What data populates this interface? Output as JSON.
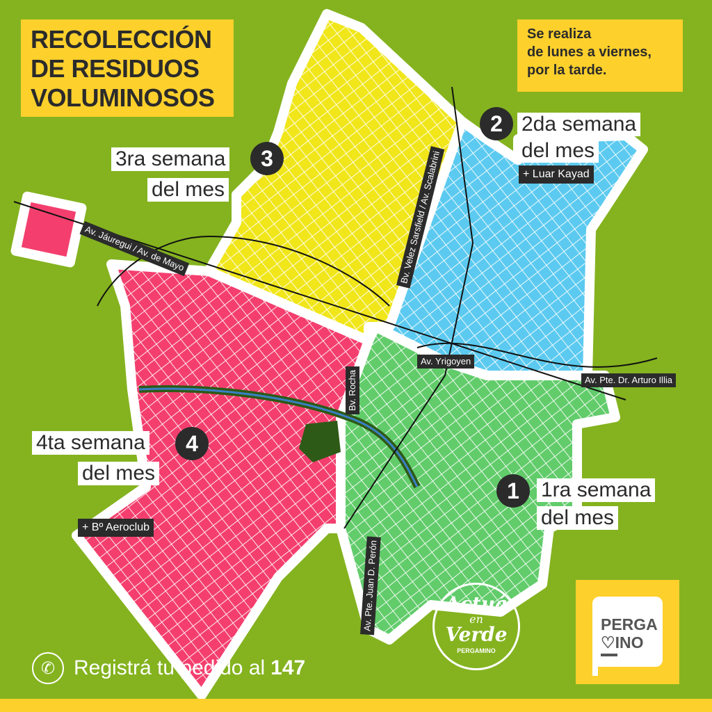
{
  "title": {
    "lines": [
      "RECOLECCIÓN",
      "DE RESIDUOS",
      "VOLUMINOSOS"
    ]
  },
  "schedule": {
    "lines": [
      "Se realiza",
      "de lunes a viernes,",
      "por la tarde."
    ]
  },
  "zones": [
    {
      "number": "1",
      "line1": "1ra semana",
      "line2": "del mes",
      "color": "#62cc6b"
    },
    {
      "number": "2",
      "line1": "2da semana",
      "line2": "del mes",
      "extra": "+ Luar Kayad",
      "color": "#5ccaf0"
    },
    {
      "number": "3",
      "line1": "3ra semana",
      "line2": "del mes",
      "color": "#f0e61a"
    },
    {
      "number": "4",
      "line1": "4ta semana",
      "line2": "del mes",
      "extra": "+ Bº Aeroclub",
      "color": "#f43f6e"
    }
  ],
  "streets": [
    "Av. Jáuregui / Av. de Mayo",
    "Bv. Velez Sarsfield / Av. Scalabrini",
    "Av. Yrigoyen",
    "Av. Pte. Dr. Arturo Illia",
    "Bv. Rocha",
    "Av. Pte. Juan D. Perón"
  ],
  "contact": {
    "text": "Registrá tu pedido al",
    "number": "147",
    "icon": "phone-icon"
  },
  "logos": {
    "actua": [
      "Actuá",
      "en",
      "Verde",
      "PERGAMINO"
    ],
    "pergamino": [
      "PERGA",
      "♡INO"
    ]
  },
  "colors": {
    "background": "#84b31f",
    "accent": "#fdd02c",
    "park": "#2d5a16",
    "river": "#3a7fc4"
  }
}
